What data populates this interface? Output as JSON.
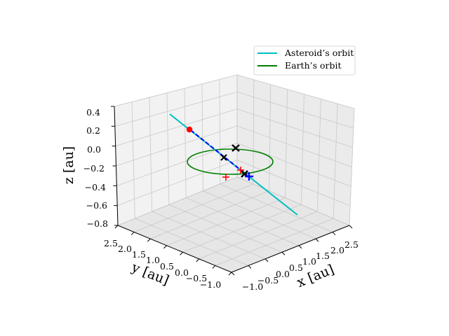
{
  "chart_data": {
    "type": "line3d",
    "xlabel": "x [au]",
    "ylabel": "y [au]",
    "zlabel": "z [au]",
    "x_ticks": [
      "−1.0",
      "−0.5",
      "0.0",
      "0.5",
      "1.0",
      "1.5",
      "2.0",
      "2.5"
    ],
    "y_ticks": [
      "2.5",
      "2.0",
      "1.5",
      "1.0",
      "0.5",
      "0.0",
      "−0.5",
      "−1.0"
    ],
    "z_ticks": [
      "0.4",
      "0.2",
      "0.0",
      "−0.2",
      "−0.4",
      "−0.6",
      "−0.8"
    ],
    "grid": true,
    "legend_position": "top-right",
    "series": [
      {
        "name": "Asteroid’s orbit",
        "color": "#00bfbf",
        "style": "solid"
      },
      {
        "name": "Earth’s orbit",
        "color": "#008000",
        "style": "solid"
      }
    ],
    "markers": [
      {
        "color": "#ff0000",
        "symbol": "circle"
      },
      {
        "color": "#000000",
        "symbol": "x"
      },
      {
        "color": "#000000",
        "symbol": "x"
      },
      {
        "color": "#000000",
        "symbol": "x"
      },
      {
        "color": "#ff0000",
        "symbol": "plus"
      },
      {
        "color": "#ff0000",
        "symbol": "plus"
      },
      {
        "color": "#0000ff",
        "symbol": "plus"
      }
    ],
    "highlight_segment_color": "#0000ff"
  }
}
